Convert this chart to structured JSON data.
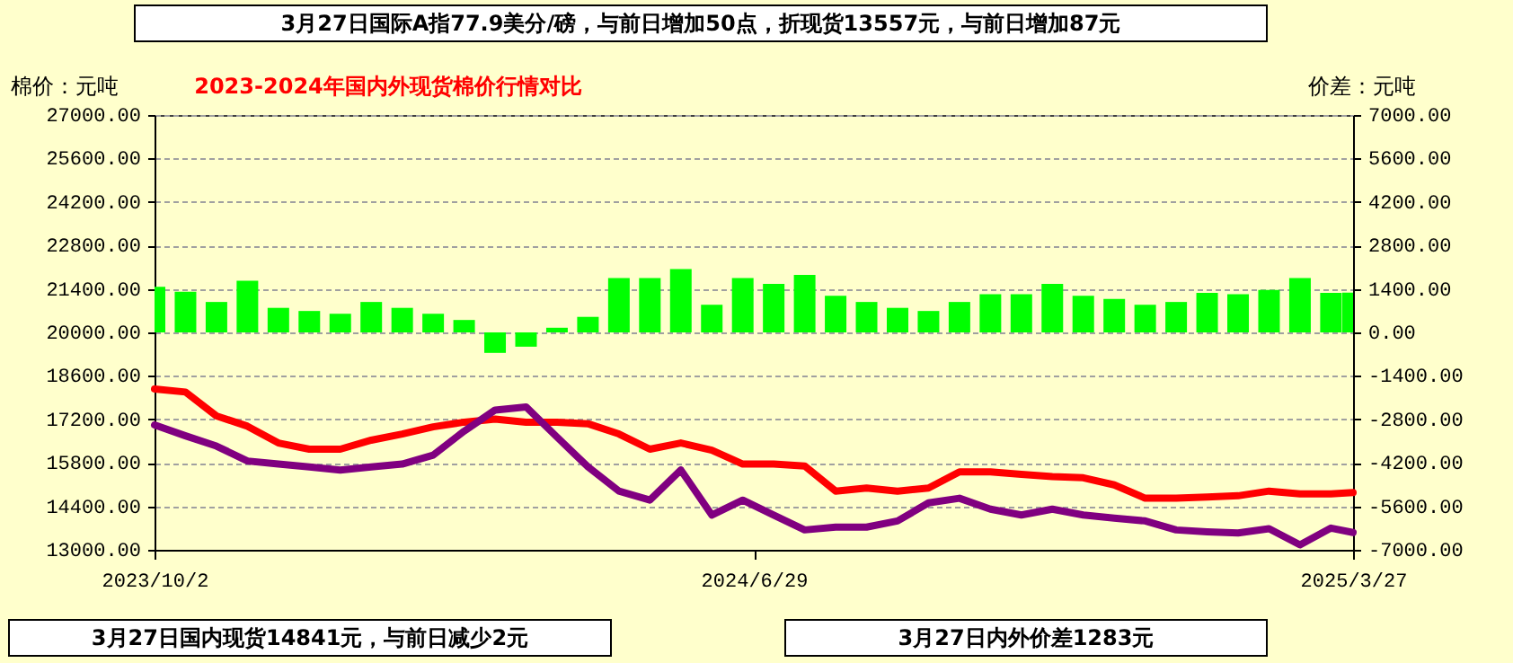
{
  "chart_data": {
    "type": "bar",
    "title": "2023-2024年国内外现货棉价行情对比",
    "ylabel": "棉价：元吨",
    "y2label": "价差：元吨",
    "annotations": [
      "3月27日国际A指77.9美分/磅，与前日增加50点，折现货13557元，与前日增加87元",
      "3月27日国内现货14841元，与前日减少2元",
      "3月27日内外价差1283元"
    ],
    "x": [
      "2023-10-02",
      "2023-10-16",
      "2023-10-30",
      "2023-11-13",
      "2023-11-27",
      "2023-12-11",
      "2023-12-25",
      "2024-01-08",
      "2024-01-22",
      "2024-02-05",
      "2024-02-19",
      "2024-03-04",
      "2024-03-18",
      "2024-04-01",
      "2024-04-15",
      "2024-04-29",
      "2024-05-13",
      "2024-05-27",
      "2024-06-10",
      "2024-06-24",
      "2024-07-08",
      "2024-07-22",
      "2024-08-05",
      "2024-08-19",
      "2024-09-02",
      "2024-09-16",
      "2024-09-30",
      "2024-10-14",
      "2024-10-28",
      "2024-11-11",
      "2024-11-25",
      "2024-12-09",
      "2024-12-23",
      "2025-01-06",
      "2025-01-20",
      "2025-02-03",
      "2025-02-17",
      "2025-03-03",
      "2025-03-17",
      "2025-03-27"
    ],
    "series": [
      {
        "axis": "y2",
        "color": "#00ff00",
        "values": [
          1470,
          1310,
          980,
          1660,
          790,
          690,
          600,
          980,
          790,
          600,
          400,
          -660,
          -460,
          150,
          500,
          1750,
          1750,
          2040,
          890,
          1750,
          1560,
          1850,
          1180,
          980,
          790,
          690,
          980,
          1230,
          1230,
          1560,
          1180,
          1080,
          890,
          980,
          1270,
          1230,
          1370,
          1750,
          1270,
          1283
        ]
      },
      {
        "type": "line",
        "axis": "y",
        "color": "#ff0000",
        "values": [
          18180,
          18080,
          17310,
          16980,
          16440,
          16240,
          16240,
          16530,
          16730,
          16960,
          17110,
          17210,
          17110,
          17110,
          17060,
          16730,
          16240,
          16440,
          16210,
          15760,
          15760,
          15700,
          14890,
          14990,
          14890,
          14990,
          15510,
          15510,
          15430,
          15360,
          15320,
          15090,
          14660,
          14660,
          14700,
          14740,
          14890,
          14800,
          14800,
          14841
        ]
      },
      {
        "type": "line",
        "axis": "y",
        "color": "#800080",
        "values": [
          17020,
          16670,
          16340,
          15860,
          15760,
          15670,
          15570,
          15670,
          15760,
          16050,
          16820,
          17500,
          17600,
          16630,
          15670,
          14890,
          14600,
          15570,
          14120,
          14600,
          14120,
          13640,
          13730,
          13730,
          13930,
          14510,
          14660,
          14310,
          14120,
          14310,
          14120,
          14020,
          13930,
          13640,
          13580,
          13540,
          13680,
          13160,
          13700,
          13557
        ]
      }
    ],
    "xlim": [
      "2023-10-02",
      "2025-03-27"
    ],
    "xticks": [
      {
        "value": "2023-10-02",
        "label": "2023/10/2"
      },
      {
        "value": "2024-06-29",
        "label": "2024/6/29"
      },
      {
        "value": "2025-03-27",
        "label": "2025/3/27"
      }
    ],
    "ylim": [
      13000,
      27000
    ],
    "yticks": [
      {
        "value": 13000,
        "label": "13000.00"
      },
      {
        "value": 14400,
        "label": "14400.00"
      },
      {
        "value": 15800,
        "label": "15800.00"
      },
      {
        "value": 17200,
        "label": "17200.00"
      },
      {
        "value": 18600,
        "label": "18600.00"
      },
      {
        "value": 20000,
        "label": "20000.00"
      },
      {
        "value": 21400,
        "label": "21400.00"
      },
      {
        "value": 22800,
        "label": "22800.00"
      },
      {
        "value": 24200,
        "label": "24200.00"
      },
      {
        "value": 25600,
        "label": "25600.00"
      },
      {
        "value": 27000,
        "label": "27000.00"
      }
    ],
    "y2lim": [
      -7000,
      7000
    ],
    "y2ticks": [
      {
        "value": -7000,
        "label": "-7000.00"
      },
      {
        "value": -5600,
        "label": "-5600.00"
      },
      {
        "value": -4200,
        "label": "-4200.00"
      },
      {
        "value": -2800,
        "label": "-2800.00"
      },
      {
        "value": -1400,
        "label": "-1400.00"
      },
      {
        "value": 0,
        "label": "0.00"
      },
      {
        "value": 1400,
        "label": "1400.00"
      },
      {
        "value": 2800,
        "label": "2800.00"
      },
      {
        "value": 4200,
        "label": "4200.00"
      },
      {
        "value": 5600,
        "label": "5600.00"
      },
      {
        "value": 7000,
        "label": "7000.00"
      }
    ],
    "grid": "y",
    "line_style": "solid",
    "marker": "none"
  }
}
